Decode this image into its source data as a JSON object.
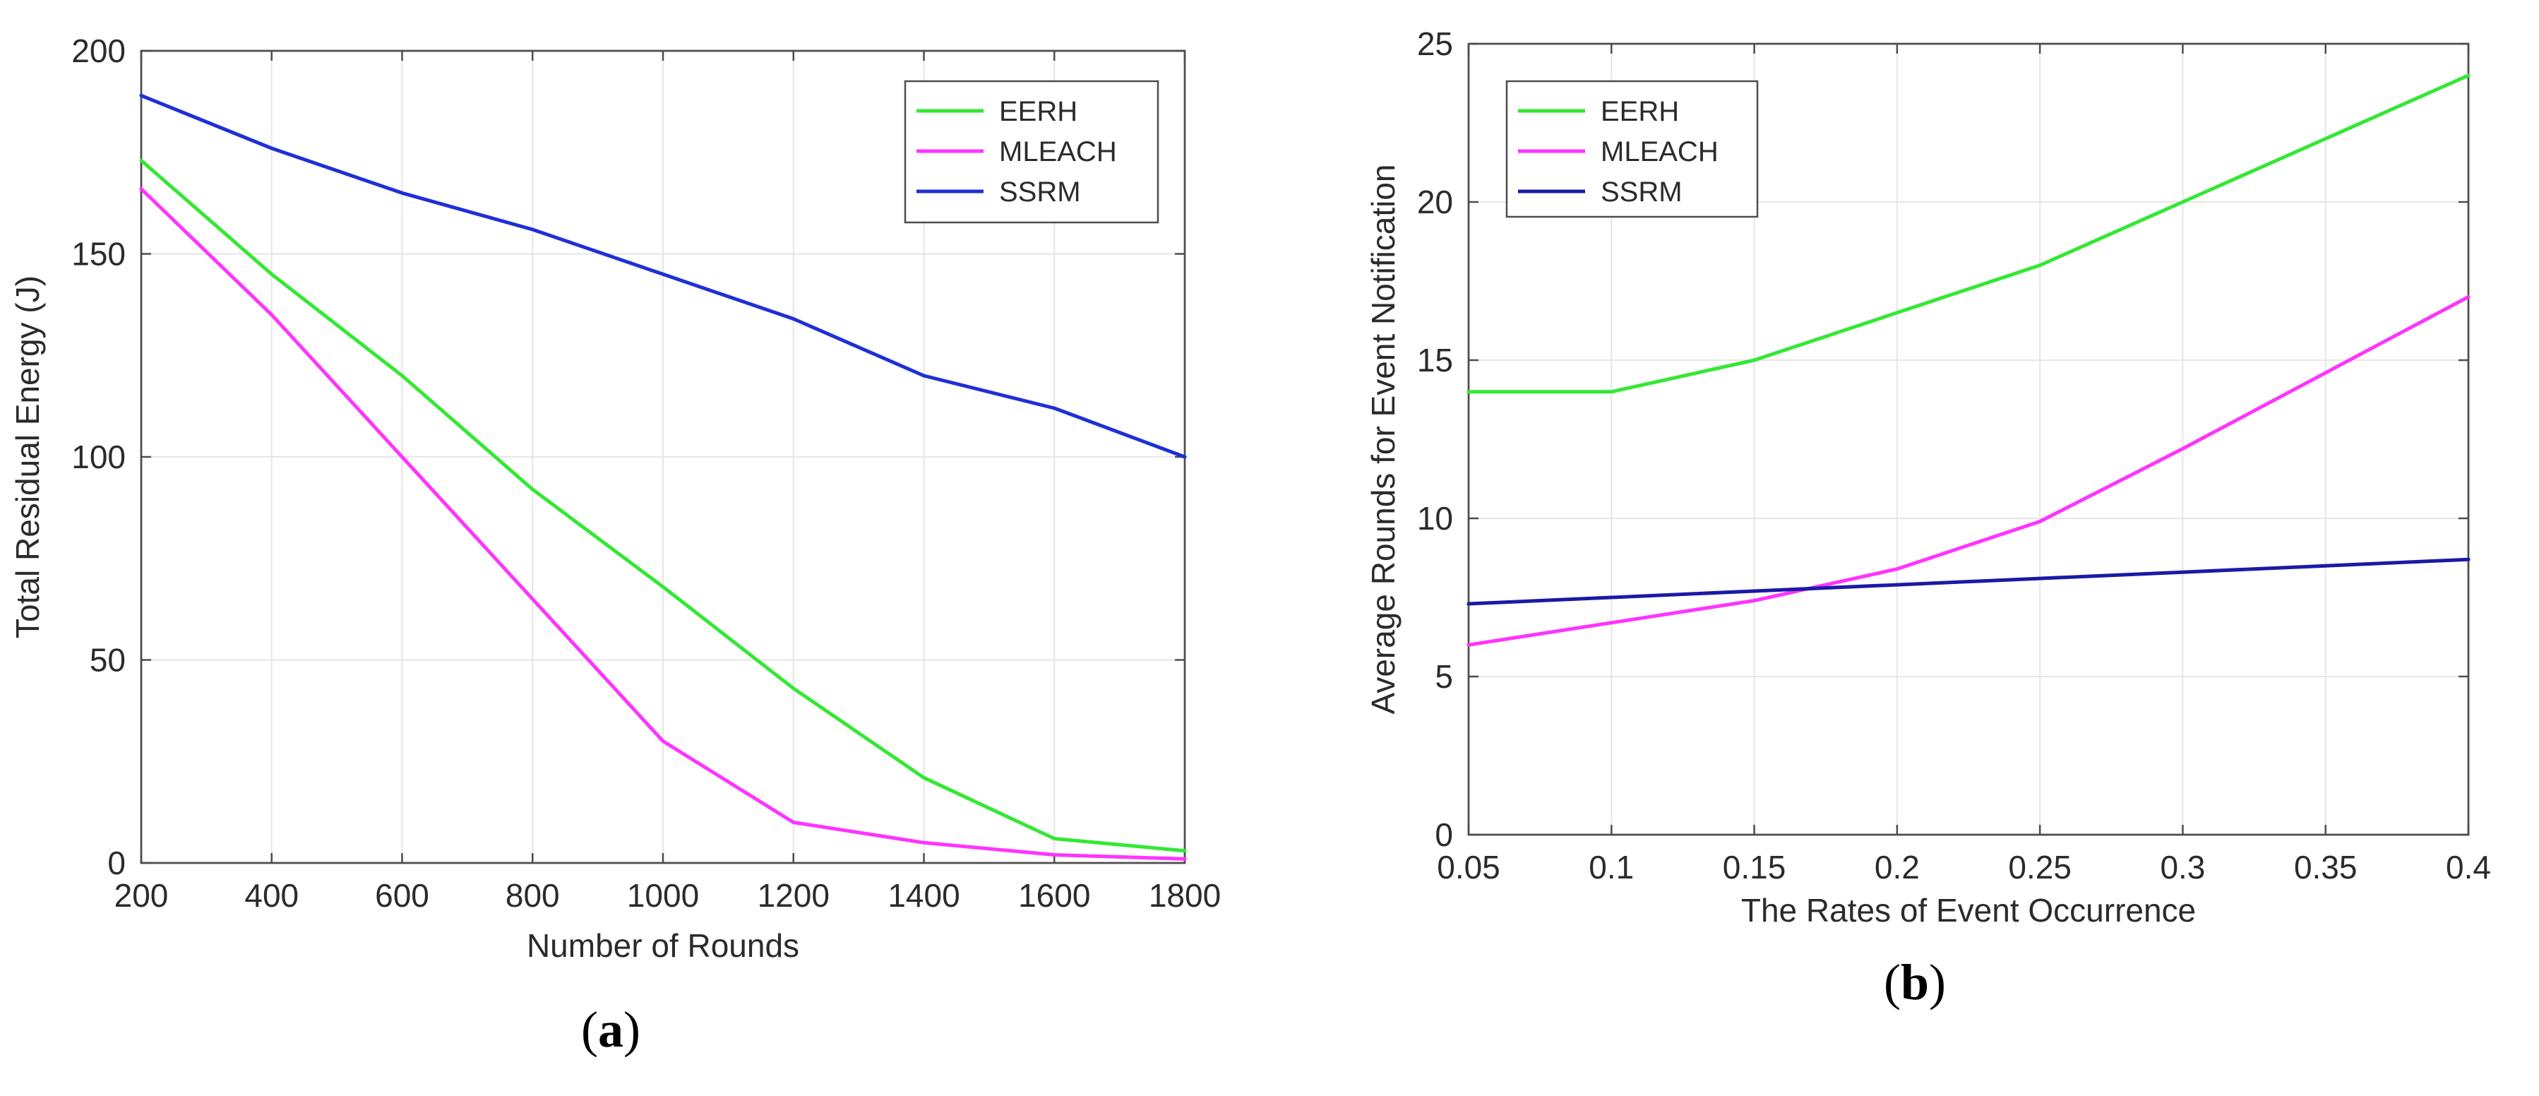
{
  "chart_data": [
    {
      "type": "line",
      "panel_label": "a",
      "title": "",
      "xlabel": "Number of Rounds",
      "ylabel": "Total Residual Energy (J)",
      "xlim": [
        200,
        1800
      ],
      "ylim": [
        0,
        200
      ],
      "x": [
        200,
        400,
        600,
        800,
        1000,
        1200,
        1400,
        1600,
        1800
      ],
      "xticks": [
        200,
        400,
        600,
        800,
        1000,
        1200,
        1400,
        1600,
        1800
      ],
      "xtick_labels": [
        "200",
        "400",
        "600",
        "800",
        "1000",
        "1200",
        "1400",
        "1600",
        "1800"
      ],
      "yticks": [
        0,
        50,
        100,
        150,
        200
      ],
      "ytick_labels": [
        "0",
        "50",
        "100",
        "150",
        "200"
      ],
      "grid": true,
      "legend_position": "top-right",
      "series": [
        {
          "name": "EERH",
          "color": "#33e833",
          "values": [
            173,
            145,
            120,
            92,
            68,
            43,
            21,
            6,
            3
          ]
        },
        {
          "name": "MLEACH",
          "color": "#ff33ff",
          "values": [
            166,
            135,
            100,
            65,
            30,
            10,
            5,
            2,
            1
          ]
        },
        {
          "name": "SSRM",
          "color": "#1f2fd6",
          "values": [
            189,
            176,
            165,
            156,
            145,
            134,
            120,
            112,
            100
          ]
        }
      ]
    },
    {
      "type": "line",
      "panel_label": "b",
      "title": "",
      "xlabel": "The Rates of Event Occurrence",
      "ylabel": "Average Rounds for Event Notification",
      "xlim": [
        0.05,
        0.4
      ],
      "ylim": [
        0,
        25
      ],
      "x": [
        0.05,
        0.1,
        0.15,
        0.2,
        0.25,
        0.3,
        0.35,
        0.4
      ],
      "xticks": [
        0.05,
        0.1,
        0.15,
        0.2,
        0.25,
        0.3,
        0.35,
        0.4
      ],
      "xtick_labels": [
        "0.05",
        "0.1",
        "0.15",
        "0.2",
        "0.25",
        "0.3",
        "0.35",
        "0.4"
      ],
      "yticks": [
        0,
        5,
        10,
        15,
        20,
        25
      ],
      "ytick_labels": [
        "0",
        "5",
        "10",
        "15",
        "20",
        "25"
      ],
      "grid": true,
      "legend_position": "top-left",
      "series": [
        {
          "name": "EERH",
          "color": "#33e833",
          "values": [
            14,
            14,
            15,
            16.5,
            18,
            20,
            22,
            24
          ]
        },
        {
          "name": "MLEACH",
          "color": "#ff33ff",
          "values": [
            6,
            6.7,
            7.4,
            8.4,
            9.9,
            12.2,
            14.6,
            17
          ]
        },
        {
          "name": "SSRM",
          "color": "#1a1aa6",
          "values": [
            7.3,
            7.5,
            7.7,
            7.9,
            8.1,
            8.3,
            8.5,
            8.7
          ]
        }
      ]
    }
  ]
}
